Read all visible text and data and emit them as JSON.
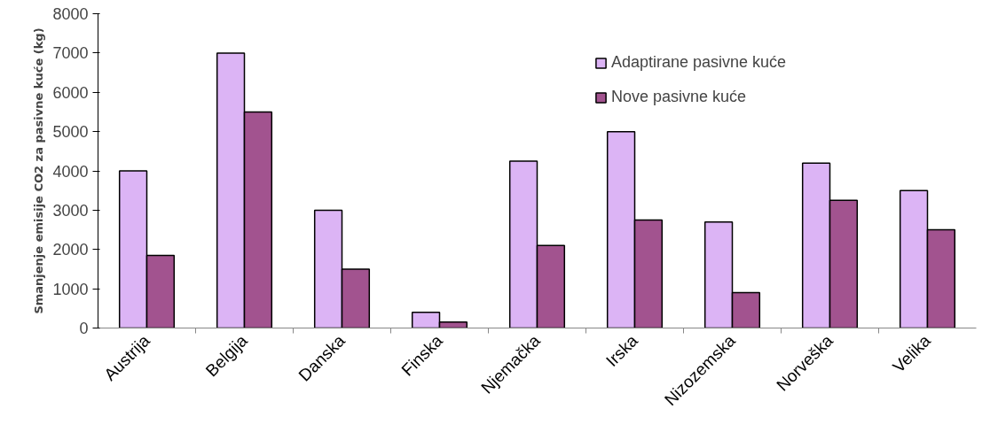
{
  "chart_data": {
    "type": "bar",
    "ylabel": "Smanjenje emisije CO2 za pasivne kuće (kg)",
    "categories": [
      "Austrija",
      "Belgija",
      "Danska",
      "Finska",
      "Njemačka",
      "Irska",
      "Nizozemska",
      "Norveška",
      "Velika"
    ],
    "series": [
      {
        "name": "Adaptirane pasivne kuće",
        "color": "#dcb4f5",
        "values": [
          4000,
          7000,
          3000,
          400,
          4250,
          5000,
          2700,
          4200,
          3500
        ]
      },
      {
        "name": "Nove pasivne kuće",
        "color": "#a2538f",
        "values": [
          1850,
          5500,
          1500,
          150,
          2100,
          2750,
          900,
          3250,
          2500
        ]
      }
    ],
    "ylim": [
      0,
      8000
    ],
    "yticks": [
      0,
      1000,
      2000,
      3000,
      4000,
      5000,
      6000,
      7000,
      8000
    ],
    "grid": false,
    "legend": "top right"
  }
}
